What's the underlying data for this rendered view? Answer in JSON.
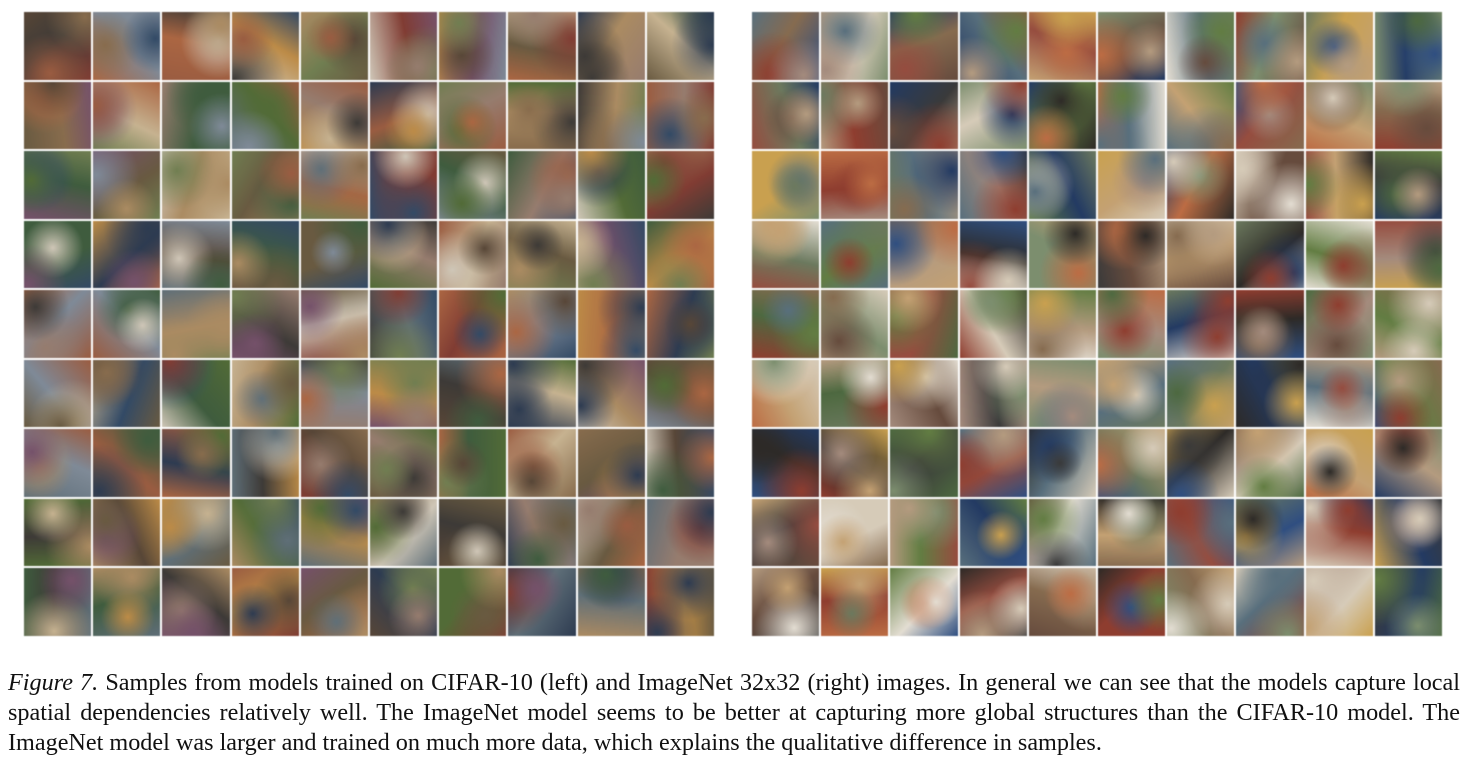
{
  "figure": {
    "left_panel": {
      "rows": 9,
      "cols": 10,
      "palette": [
        "#3b5d3a",
        "#6b5a3c",
        "#8c6b47",
        "#b08a5a",
        "#5a4634",
        "#2f4a6b",
        "#7d8a9a",
        "#a35a3a",
        "#c9b28a",
        "#4f6d2f",
        "#8a3a2f",
        "#d0c6b4",
        "#3e3a36",
        "#6f7f4a",
        "#b5643a",
        "#2b3b55",
        "#9a7b6b",
        "#5d6f7a",
        "#c48a3a",
        "#7a4f6d"
      ]
    },
    "right_panel": {
      "rows": 9,
      "cols": 10,
      "palette": [
        "#4a6a3a",
        "#8a6a4a",
        "#b89a7a",
        "#d8cbb5",
        "#3a3a3a",
        "#2a4f8a",
        "#7a8f6a",
        "#a04a3a",
        "#c9a06a",
        "#5f7f3a",
        "#9a3a2a",
        "#e4ddd0",
        "#2e2a26",
        "#6a7a5a",
        "#c86a3a",
        "#1f3a6a",
        "#a88a7a",
        "#557080",
        "#d0a040",
        "#6a4a3a"
      ]
    },
    "caption": {
      "label": "Figure 7.",
      "text": "Samples from models trained on CIFAR-10 (left) and ImageNet 32x32 (right) images. In general we can see that the models capture local spatial dependencies relatively well. The ImageNet model seems to be better at capturing more global structures than the CIFAR-10 model. The ImageNet model was larger and trained on much more data, which explains the qualitative difference in samples."
    }
  }
}
